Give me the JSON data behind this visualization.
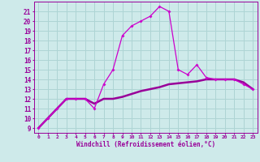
{
  "xlabel": "Windchill (Refroidissement éolien,°C)",
  "background_color": "#ceeaea",
  "grid_color": "#aed4d4",
  "line_color": "#990099",
  "line_color2": "#cc00cc",
  "x_line1": [
    0,
    1,
    2,
    3,
    4,
    5,
    6,
    7,
    8,
    9,
    10,
    11,
    12,
    13,
    14,
    15,
    16,
    17,
    18,
    19,
    20,
    21,
    22,
    23
  ],
  "y_line1": [
    9,
    10,
    11,
    12,
    12,
    12,
    11,
    13.5,
    15,
    18.5,
    19.5,
    20,
    20.5,
    21.5,
    21,
    15,
    14.5,
    15.5,
    14.2,
    14,
    14,
    14,
    13.5,
    13
  ],
  "x_line2": [
    0,
    1,
    2,
    3,
    4,
    5,
    6,
    7,
    8,
    9,
    10,
    11,
    12,
    13,
    14,
    15,
    16,
    17,
    18,
    19,
    20,
    21,
    22,
    23
  ],
  "y_line2": [
    9,
    10,
    11,
    12,
    12,
    12,
    11.5,
    12,
    12,
    12.2,
    12.5,
    12.8,
    13,
    13.2,
    13.5,
    13.6,
    13.7,
    13.8,
    14,
    14,
    14,
    14,
    13.7,
    13
  ],
  "ylim": [
    8.5,
    22
  ],
  "xlim": [
    -0.5,
    23.5
  ],
  "yticks": [
    9,
    10,
    11,
    12,
    13,
    14,
    15,
    16,
    17,
    18,
    19,
    20,
    21
  ],
  "xticks": [
    0,
    1,
    2,
    3,
    4,
    5,
    6,
    7,
    8,
    9,
    10,
    11,
    12,
    13,
    14,
    15,
    16,
    17,
    18,
    19,
    20,
    21,
    22,
    23
  ],
  "xlabel_fontsize": 5.5,
  "ytick_fontsize": 5.5,
  "xtick_fontsize": 4.5
}
